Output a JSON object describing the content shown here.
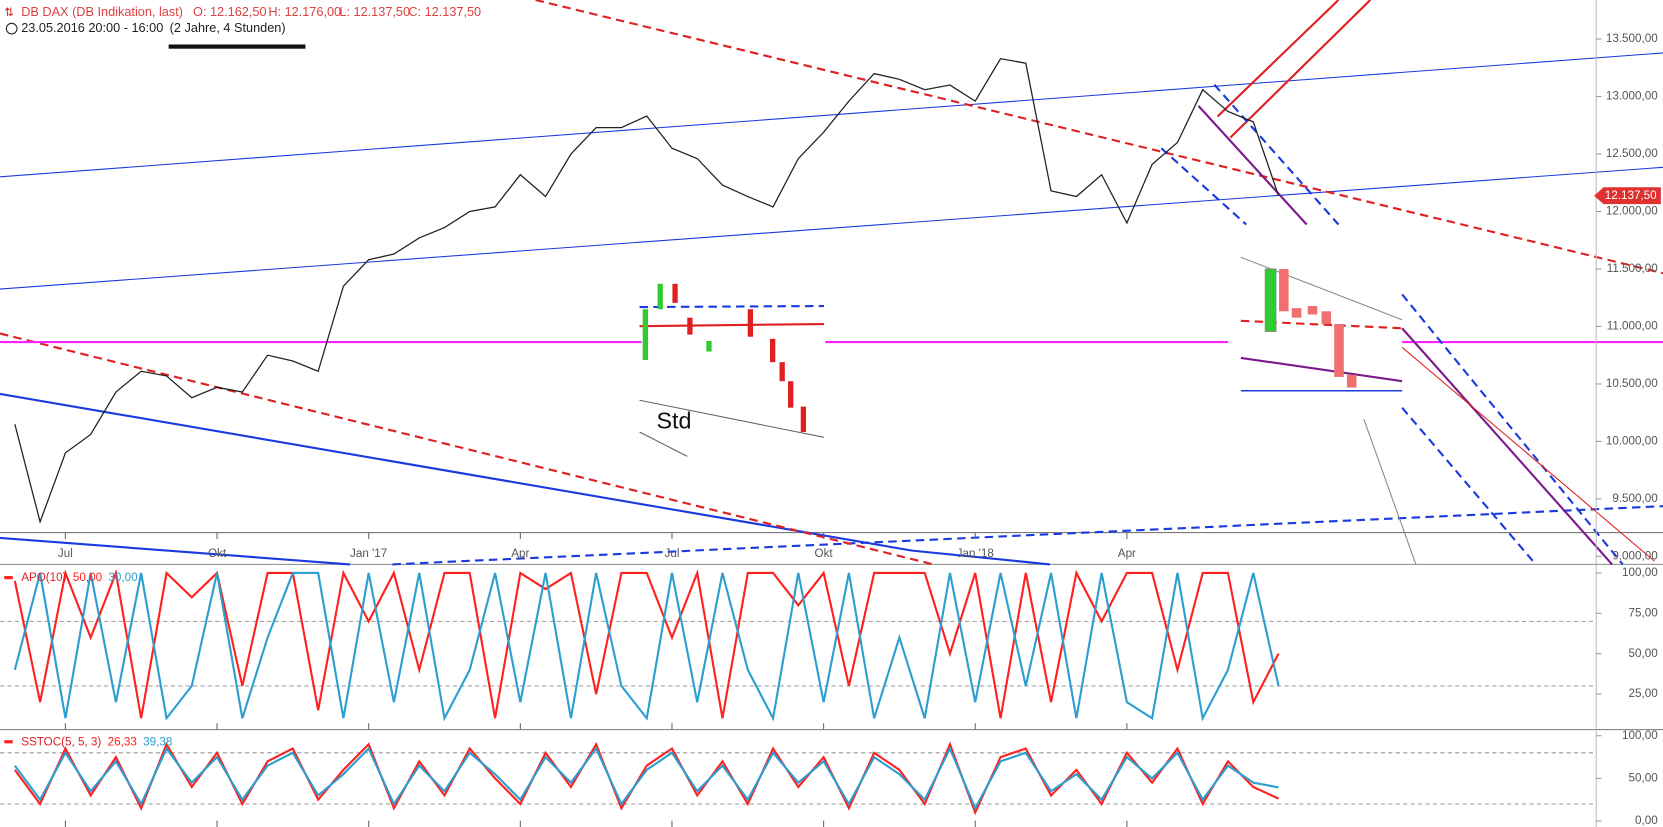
{
  "chart_data": [
    {
      "type": "line",
      "title": "DB DAX (DB Indikation, last)",
      "ohlc": [
        "O: 12.162,50",
        "H: 12.176,00",
        "L: 12.137,50",
        "C: 12.137,50"
      ],
      "subtitle": "23.05.2016 20:00 - 16:00",
      "period": "(2 Jahre, 4 Stunden)",
      "annotation": "Std",
      "categories": [
        null,
        null,
        "Jul",
        null,
        null,
        null,
        null,
        null,
        "Okt",
        null,
        null,
        null,
        null,
        null,
        "Jan '17",
        null,
        null,
        null,
        null,
        null,
        "Apr",
        null,
        null,
        null,
        null,
        null,
        "Jul",
        null,
        null,
        null,
        null,
        null,
        "Okt",
        null,
        null,
        null,
        null,
        null,
        "Jan '18",
        null,
        null,
        null,
        null,
        null,
        "Apr",
        null,
        null,
        null,
        null,
        null,
        null,
        null,
        null,
        null,
        null,
        null,
        null,
        null,
        null,
        null,
        null,
        null,
        null
      ],
      "values": [
        10150,
        9300,
        9900,
        10060,
        10430,
        10610,
        10570,
        10380,
        10470,
        10430,
        10750,
        10700,
        10610,
        11350,
        11580,
        11630,
        11770,
        11860,
        12000,
        12040,
        12320,
        12130,
        12500,
        12730,
        12730,
        12830,
        12550,
        12460,
        12230,
        12130,
        12040,
        12460,
        12690,
        12960,
        13200,
        13150,
        13060,
        13100,
        12960,
        13330,
        13290,
        12180,
        12130,
        12320,
        11900,
        12410,
        12600,
        13060,
        12870,
        12780,
        12137.5,
        null,
        null,
        null,
        null,
        null,
        null,
        null,
        null,
        null,
        null,
        null,
        null
      ],
      "color": "#222222",
      "last_price": {
        "value": 12137.5,
        "label": "12.137,50"
      },
      "ylim": [
        8930,
        13840
      ],
      "yticks": [
        {
          "value": 9000,
          "label": "9.000,00"
        },
        {
          "value": 9500,
          "label": "9.500,00"
        },
        {
          "value": 10000,
          "label": "10.000,00"
        },
        {
          "value": 10500,
          "label": "10.500,00"
        },
        {
          "value": 11000,
          "label": "11.000,00"
        },
        {
          "value": 11500,
          "label": "11.500,00"
        },
        {
          "value": 12000,
          "label": "12.000,00"
        },
        {
          "value": 12500,
          "label": "12.500,00"
        },
        {
          "value": 13000,
          "label": "13.000,00"
        },
        {
          "value": 13500,
          "label": "13.500,00"
        }
      ]
    },
    {
      "type": "line",
      "title": "APO(10)",
      "series": [
        {
          "last_label": "50,00",
          "color": "#ff2020",
          "values": [
            95,
            20,
            100,
            60,
            100,
            10,
            100,
            85,
            100,
            30,
            100,
            100,
            15,
            100,
            70,
            100,
            40,
            100,
            100,
            10,
            100,
            90,
            100,
            25,
            100,
            100,
            60,
            100,
            10,
            100,
            100,
            80,
            100,
            30,
            100,
            100,
            100,
            50,
            100,
            10,
            100,
            20,
            100,
            70,
            100,
            100,
            40,
            100,
            100,
            20,
            50
          ]
        },
        {
          "last_label": "30,00",
          "color": "#2a9fd0",
          "values": [
            40,
            100,
            10,
            100,
            20,
            100,
            10,
            30,
            100,
            10,
            60,
            100,
            100,
            10,
            100,
            20,
            100,
            10,
            40,
            100,
            20,
            100,
            10,
            100,
            30,
            10,
            100,
            20,
            100,
            40,
            10,
            100,
            20,
            100,
            10,
            60,
            10,
            100,
            20,
            100,
            30,
            100,
            10,
            100,
            20,
            10,
            100,
            10,
            40,
            100,
            30
          ]
        }
      ],
      "hlines": [
        70,
        30
      ],
      "ylim": [
        3,
        104
      ],
      "yticks": [
        {
          "value": 25,
          "label": "25,00"
        },
        {
          "value": 50,
          "label": "50,00"
        },
        {
          "value": 75,
          "label": "75,00"
        },
        {
          "value": 100,
          "label": "100,00"
        }
      ]
    },
    {
      "type": "line",
      "title": "SSTOC(5, 5, 3)",
      "series": [
        {
          "last_label": "26,33",
          "color": "#ff2020",
          "values": [
            60,
            20,
            85,
            30,
            75,
            15,
            90,
            40,
            80,
            20,
            70,
            85,
            25,
            60,
            90,
            15,
            70,
            30,
            85,
            50,
            20,
            80,
            40,
            90,
            15,
            65,
            85,
            30,
            70,
            20,
            85,
            40,
            75,
            15,
            80,
            60,
            20,
            90,
            10,
            75,
            85,
            30,
            60,
            20,
            80,
            45,
            85,
            20,
            70,
            40,
            26.33
          ]
        },
        {
          "last_label": "39,38",
          "color": "#2a9fd0",
          "values": [
            65,
            25,
            80,
            35,
            70,
            20,
            85,
            45,
            75,
            25,
            65,
            80,
            30,
            55,
            85,
            20,
            65,
            35,
            80,
            55,
            25,
            75,
            45,
            85,
            20,
            60,
            80,
            35,
            65,
            25,
            80,
            45,
            70,
            20,
            75,
            55,
            25,
            85,
            15,
            70,
            80,
            35,
            55,
            25,
            75,
            50,
            80,
            25,
            65,
            45,
            39.38
          ]
        }
      ],
      "hlines": [
        80,
        20
      ],
      "ylim": [
        -7,
        106
      ],
      "yticks": [
        {
          "value": 0,
          "label": "0,00"
        },
        {
          "value": 50,
          "label": "50,00"
        },
        {
          "value": 100,
          "label": "100,00"
        }
      ]
    }
  ]
}
